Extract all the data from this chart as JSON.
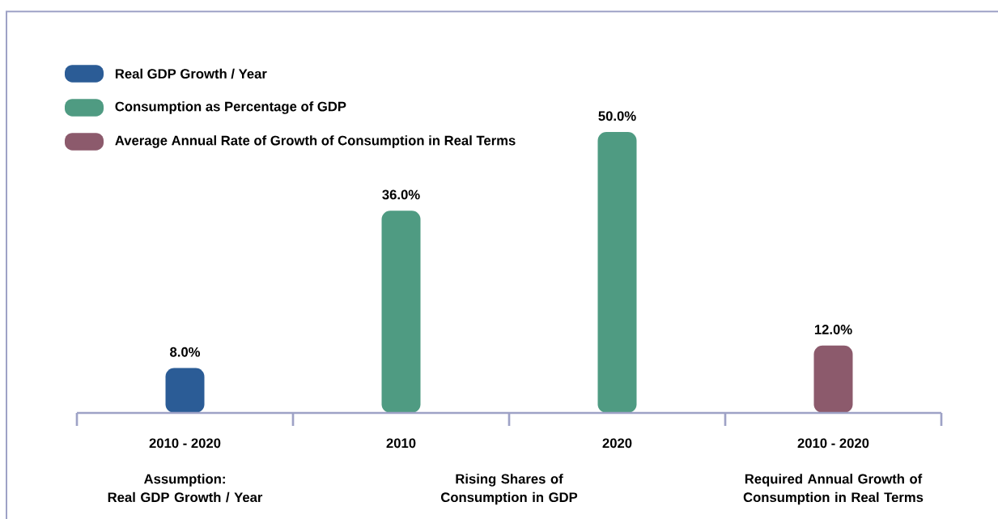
{
  "chart_data": {
    "type": "bar",
    "categories": [
      "2010 - 2020",
      "2010",
      "2020",
      "2010 - 2020"
    ],
    "series": [
      {
        "name": "Real GDP Growth / Year",
        "color": "#2b5c96",
        "values": [
          8.0,
          null,
          null,
          null
        ],
        "value_labels": [
          "8.0%",
          null,
          null,
          null
        ]
      },
      {
        "name": "Consumption as Percentage of GDP",
        "color": "#4f9b82",
        "values": [
          null,
          36.0,
          50.0,
          null
        ],
        "value_labels": [
          null,
          "36.0%",
          "50.0%",
          null
        ]
      },
      {
        "name": "Average Annual Rate of Growth of Consumption in Real Terms",
        "color": "#8c5a6c",
        "values": [
          null,
          null,
          null,
          12.0
        ],
        "value_labels": [
          null,
          null,
          null,
          "12.0%"
        ]
      }
    ],
    "legend": "top left",
    "annotations": [
      "Assumption:\nReal GDP Growth / Year",
      "Rising Shares of Consumption in GDP",
      "Required Annual Growth of\nConsumption in Real Terms"
    ]
  }
}
